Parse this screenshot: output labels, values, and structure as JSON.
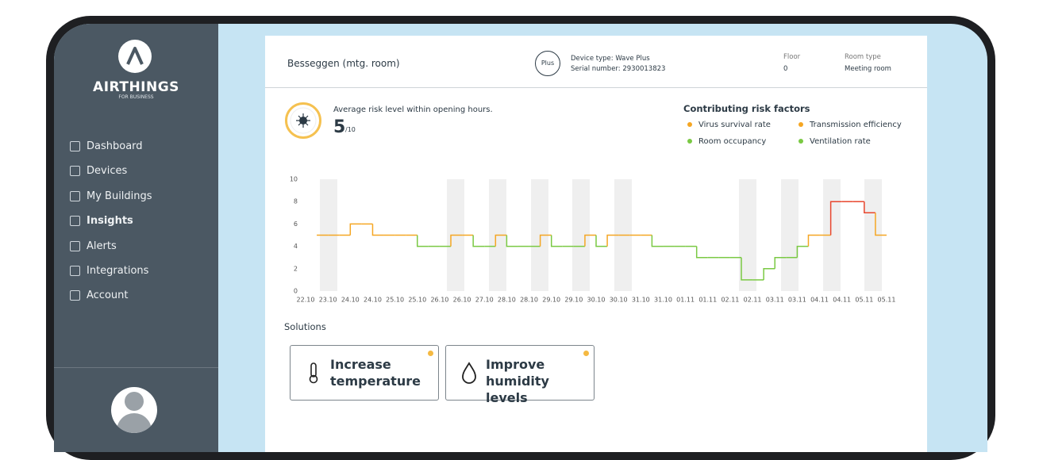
{
  "sidebar": {
    "brand": "AIRTHINGS",
    "brand_sub": "FOR BUSINESS",
    "nav": [
      "Dashboard",
      "Devices",
      "My Buildings",
      "Insights",
      "Alerts",
      "Integrations",
      "Account"
    ]
  },
  "header": {
    "room": "Besseggen (mtg. room)",
    "badge": "Plus",
    "device_type": "Device type: Wave Plus",
    "serial": "Serial number: 2930013823",
    "floor_label": "Floor",
    "floor": 0,
    "room_type_label": "Room type",
    "room_type": "Meeting room"
  },
  "risk": {
    "caption": "Average risk level within opening hours.",
    "score": 5,
    "scale": "/10"
  },
  "factors": {
    "title": "Contributing risk factors",
    "items": [
      {
        "name": "Virus survival rate",
        "color": "#f5a623"
      },
      {
        "name": "Transmission efficiency",
        "color": "#f5a623"
      },
      {
        "name": "Room occupancy",
        "color": "#7ac943"
      },
      {
        "name": "Ventilation rate",
        "color": "#7ac943"
      }
    ]
  },
  "chart_data": {
    "type": "line",
    "categories": [
      "22.10",
      null,
      "23.10",
      null,
      "24.10",
      null,
      "24.10",
      null,
      "25.10",
      null,
      "25.10",
      null,
      "26.10",
      null,
      "26.10",
      null,
      "27.10",
      null,
      "28.10",
      null,
      "28.10",
      null,
      "29.10",
      null,
      "29.10",
      null,
      "30.10",
      null,
      "30.10",
      null,
      "31.10",
      null,
      "31.10",
      null,
      "01.11",
      null,
      "01.11",
      null,
      "02.11",
      null,
      "02.11",
      null,
      "03.11",
      null,
      "03.11",
      null,
      "04.11",
      null,
      "04.11",
      null,
      "05.11",
      null,
      "05.11"
    ],
    "series": [
      {
        "values": [
          null,
          5,
          5,
          5,
          6,
          6,
          5,
          5,
          5,
          5,
          4,
          4,
          4,
          5,
          5,
          4,
          4,
          5,
          4,
          4,
          4,
          5,
          4,
          4,
          4,
          5,
          4,
          5,
          5,
          5,
          5,
          4,
          4,
          4,
          4,
          3,
          3,
          3,
          3,
          1,
          1,
          2,
          3,
          3,
          4,
          5,
          5,
          8,
          8,
          8,
          7,
          5,
          null
        ],
        "colors": [
          null,
          "#f5a623",
          "#f5a623",
          "#f5a623",
          "#f5a623",
          "#f5a623",
          "#f5a623",
          "#f5a623",
          "#f5a623",
          "#f5a623",
          "#7ac943",
          "#7ac943",
          "#7ac943",
          "#f5a623",
          "#f5a623",
          "#7ac943",
          "#7ac943",
          "#f5a623",
          "#7ac943",
          "#7ac943",
          "#7ac943",
          "#f5a623",
          "#7ac943",
          "#7ac943",
          "#7ac943",
          "#f5a623",
          "#7ac943",
          "#f5a623",
          "#f5a623",
          "#f5a623",
          "#f5a623",
          "#7ac943",
          "#7ac943",
          "#7ac943",
          "#7ac943",
          "#7ac943",
          "#7ac943",
          "#7ac943",
          "#7ac943",
          "#7ac943",
          "#7ac943",
          "#7ac943",
          "#7ac943",
          "#7ac943",
          "#7ac943",
          "#f5a623",
          "#f5a623",
          "#e8452c",
          "#e8452c",
          "#e8452c",
          "#e8452c",
          "#f5a623",
          null
        ]
      }
    ],
    "ylim": [
      0,
      10
    ],
    "yticks": [
      0,
      2,
      4,
      6,
      8,
      10
    ]
  },
  "solutions": {
    "title": "Solutions",
    "items": [
      "Increase temperature",
      "Improve humidity levels"
    ]
  }
}
